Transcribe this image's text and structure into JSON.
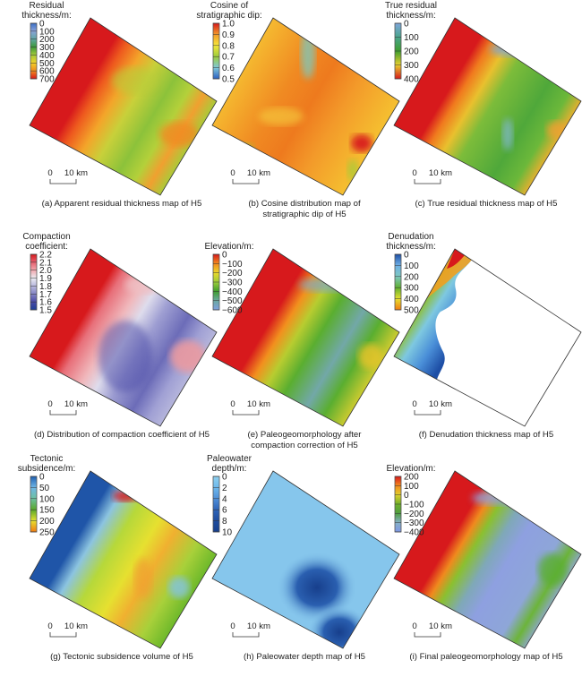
{
  "panels": [
    {
      "id": "a",
      "legend_title": [
        "Residual",
        "thickness/m:"
      ],
      "ticks": [
        "0",
        "100",
        "200",
        "300",
        "400",
        "500",
        "600",
        "700"
      ],
      "colorbar": [
        "#3b6fc7",
        "#8aa3d8",
        "#5fa7a3",
        "#3c9a3a",
        "#a4c93a",
        "#f2d02a",
        "#f08a1e",
        "#d7191c"
      ],
      "scale": {
        "zero": "0",
        "ten": "10 km"
      },
      "caption": [
        "(a) Apparent residual thickness map of H5"
      ]
    },
    {
      "id": "b",
      "legend_title": [
        "Cosine of",
        "stratigraphic dip:"
      ],
      "ticks": [
        "1.0",
        "0.9",
        "0.8",
        "0.7",
        "0.6",
        "0.5"
      ],
      "colorbar": [
        "#d7191c",
        "#f39a2a",
        "#f5e73a",
        "#9ccc3c",
        "#7fc7d8",
        "#2b5fc2"
      ],
      "scale": {
        "zero": "0",
        "ten": "10 km"
      },
      "caption": [
        "(b) Cosine distribution map of",
        "stratigraphic dip of H5"
      ]
    },
    {
      "id": "c",
      "legend_title": [
        "True residual",
        "thickness/m:"
      ],
      "ticks": [
        "0",
        "100",
        "200",
        "300",
        "400"
      ],
      "colorbar": [
        "#7fa6dc",
        "#4aa58c",
        "#3e9e2e",
        "#e6cf30",
        "#d7191c"
      ],
      "scale": {
        "zero": "0",
        "ten": "10 km"
      },
      "caption": [
        "(c) True residual thickness map of H5"
      ]
    },
    {
      "id": "d",
      "legend_title": [
        "Compaction",
        "coefficient:"
      ],
      "ticks": [
        "2.2",
        "2.1",
        "2.0",
        "1.9",
        "1.8",
        "1.7",
        "1.6",
        "1.5"
      ],
      "colorbar": [
        "#d7191c",
        "#e66070",
        "#f2a8ae",
        "#ececf2",
        "#b8b8de",
        "#8484c4",
        "#4a4aa6",
        "#1e3f96"
      ],
      "scale": {
        "zero": "0",
        "ten": "10 km"
      },
      "caption": [
        "(d) Distribution of compaction coefficient of H5"
      ]
    },
    {
      "id": "e",
      "legend_title": [
        "Elevation/m:"
      ],
      "ticks": [
        "0",
        "−100",
        "−200",
        "−300",
        "−400",
        "−500",
        "−600"
      ],
      "colorbar": [
        "#d7191c",
        "#f38a1e",
        "#e9d92c",
        "#9ccc3a",
        "#3e9e2e",
        "#6aa8a0",
        "#7f9fe0"
      ],
      "scale": {
        "zero": "0",
        "ten": "10 km"
      },
      "caption": [
        "(e) Paleogeomorphology after",
        "compaction correction of H5"
      ]
    },
    {
      "id": "f",
      "legend_title": [
        "Denudation",
        "thickness/m:"
      ],
      "ticks": [
        "0",
        "100",
        "200",
        "300",
        "400",
        "500"
      ],
      "colorbar": [
        "#1e4fa6",
        "#6fb0e6",
        "#7ec8c0",
        "#5fb030",
        "#e6e030",
        "#f07a10"
      ],
      "scale": {
        "zero": "0",
        "ten": "10 km"
      },
      "caption": [
        "(f) Denudation thickness map of H5"
      ]
    },
    {
      "id": "g",
      "legend_title": [
        "Tectonic",
        "subsidence/m:"
      ],
      "ticks": [
        "0",
        "50",
        "100",
        "150",
        "200",
        "250"
      ],
      "colorbar": [
        "#1f5fb0",
        "#6fb6e6",
        "#6cc0a0",
        "#5aa82a",
        "#e6e030",
        "#f07a10"
      ],
      "scale": {
        "zero": "0",
        "ten": "10 km"
      },
      "caption": [
        "(g) Tectonic subsidence volume of H5"
      ]
    },
    {
      "id": "h",
      "legend_title": [
        "Paleowater",
        "depth/m:"
      ],
      "ticks": [
        "0",
        "2",
        "4",
        "6",
        "8",
        "10"
      ],
      "colorbar": [
        "#8fd0ee",
        "#6db8ec",
        "#4f8fd8",
        "#2f64b8",
        "#1f4c9e",
        "#173f8c"
      ],
      "scale": {
        "zero": "0",
        "ten": "10 km"
      },
      "caption": [
        "(h) Paleowater depth map of H5"
      ]
    },
    {
      "id": "i",
      "legend_title": [
        "Elevation/m:"
      ],
      "ticks": [
        "200",
        "100",
        "0",
        "−100",
        "−200",
        "−300",
        "−400"
      ],
      "colorbar": [
        "#d7191c",
        "#f38a1e",
        "#dfd02c",
        "#6fb02a",
        "#4f9e40",
        "#86b0c8",
        "#7f98e6"
      ],
      "scale": {
        "zero": "0",
        "ten": "10 km"
      },
      "caption": [
        "(i) Final paleogeomorphology map of H5"
      ]
    }
  ]
}
